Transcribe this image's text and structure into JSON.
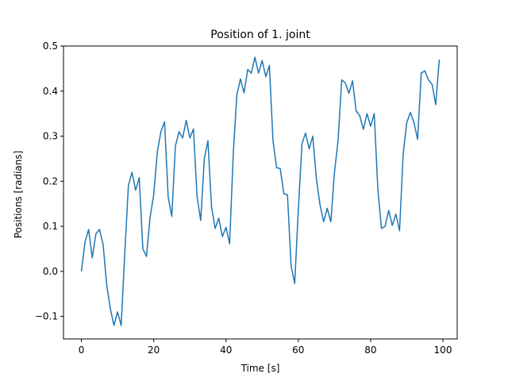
{
  "chart_data": {
    "type": "line",
    "title": "Position of 1. joint",
    "xlabel": "Time [s]",
    "ylabel": "Positions [radians]",
    "xlim": [
      -4.95,
      103.95
    ],
    "ylim": [
      -0.15,
      0.5
    ],
    "xticks": [
      0,
      20,
      40,
      60,
      80,
      100
    ],
    "xtick_labels": [
      "0",
      "20",
      "40",
      "60",
      "80",
      "100"
    ],
    "yticks": [
      -0.1,
      0.0,
      0.1,
      0.2,
      0.3,
      0.4,
      0.5
    ],
    "ytick_labels": [
      "−0.1",
      "0.0",
      "0.1",
      "0.2",
      "0.3",
      "0.4",
      "0.5"
    ],
    "grid": false,
    "series": [
      {
        "color": "#1f77b4",
        "x": [
          0,
          1,
          2,
          3,
          4,
          5,
          6,
          7,
          8,
          9,
          10,
          11,
          12,
          13,
          14,
          15,
          16,
          17,
          18,
          19,
          20,
          21,
          22,
          23,
          24,
          25,
          26,
          27,
          28,
          29,
          30,
          31,
          32,
          33,
          34,
          35,
          36,
          37,
          38,
          39,
          40,
          41,
          42,
          43,
          44,
          45,
          46,
          47,
          48,
          49,
          50,
          51,
          52,
          53,
          54,
          55,
          56,
          57,
          58,
          59,
          60,
          61,
          62,
          63,
          64,
          65,
          66,
          67,
          68,
          69,
          70,
          71,
          72,
          73,
          74,
          75,
          76,
          77,
          78,
          79,
          80,
          81,
          82,
          83,
          84,
          85,
          86,
          87,
          88,
          89,
          90,
          91,
          92,
          93,
          94,
          95,
          96,
          97,
          98,
          99
        ],
        "y": [
          0.0,
          0.065,
          0.093,
          0.03,
          0.083,
          0.093,
          0.06,
          -0.03,
          -0.083,
          -0.12,
          -0.09,
          -0.12,
          0.04,
          0.19,
          0.22,
          0.18,
          0.208,
          0.05,
          0.033,
          0.12,
          0.17,
          0.265,
          0.31,
          0.332,
          0.165,
          0.122,
          0.278,
          0.31,
          0.296,
          0.335,
          0.296,
          0.316,
          0.166,
          0.113,
          0.25,
          0.29,
          0.143,
          0.095,
          0.118,
          0.077,
          0.098,
          0.061,
          0.26,
          0.392,
          0.427,
          0.396,
          0.448,
          0.44,
          0.475,
          0.44,
          0.468,
          0.432,
          0.457,
          0.29,
          0.23,
          0.228,
          0.172,
          0.17,
          0.013,
          -0.027,
          0.135,
          0.283,
          0.307,
          0.272,
          0.3,
          0.205,
          0.148,
          0.11,
          0.14,
          0.11,
          0.22,
          0.29,
          0.425,
          0.418,
          0.395,
          0.423,
          0.356,
          0.345,
          0.315,
          0.35,
          0.322,
          0.35,
          0.182,
          0.095,
          0.1,
          0.135,
          0.102,
          0.127,
          0.09,
          0.26,
          0.33,
          0.353,
          0.33,
          0.293,
          0.44,
          0.445,
          0.425,
          0.415,
          0.37,
          0.47
        ]
      }
    ]
  }
}
